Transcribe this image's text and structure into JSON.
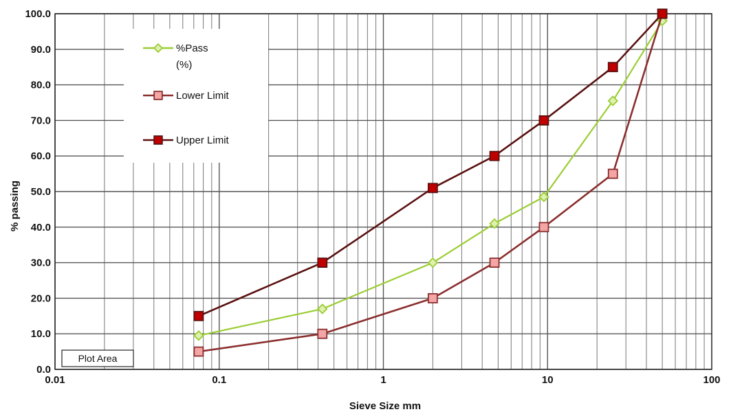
{
  "chart_data": {
    "type": "line",
    "xlabel": "Sieve Size mm",
    "ylabel": "% passing",
    "x_scale": "log",
    "xlim": [
      0.01,
      100
    ],
    "ylim": [
      0,
      100
    ],
    "x_ticks": [
      "0.01",
      "0.1",
      "1",
      "10",
      "100"
    ],
    "y_ticks": [
      "0.0",
      "10.0",
      "20.0",
      "30.0",
      "40.0",
      "50.0",
      "60.0",
      "70.0",
      "80.0",
      "90.0",
      "100.0"
    ],
    "grid": true,
    "legend_position": "top-left",
    "annotation": "Plot Area",
    "x": [
      0.075,
      0.425,
      2,
      4.75,
      9.5,
      25,
      50
    ],
    "series": [
      {
        "name": "%Pass\n(%)",
        "color": "#9acd32",
        "marker": "diamond",
        "values": [
          9.5,
          17,
          30,
          41,
          48.5,
          75.5,
          98
        ]
      },
      {
        "name": "Lower Limit",
        "color": "#8b2e2e",
        "marker_fill": "#f4a6a6",
        "marker": "square",
        "values": [
          5,
          10,
          20,
          30,
          40,
          55,
          100
        ]
      },
      {
        "name": "Upper Limit",
        "color": "#5a1010",
        "marker_fill": "#c00000",
        "marker": "square",
        "values": [
          15,
          30,
          51,
          60,
          70,
          85,
          100
        ]
      }
    ]
  }
}
